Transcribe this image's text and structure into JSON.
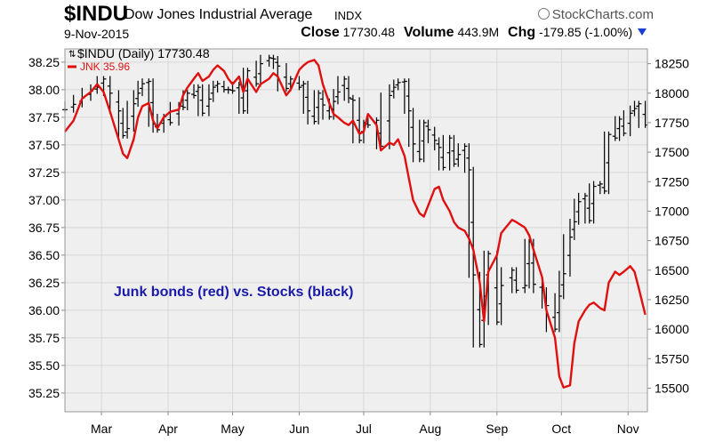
{
  "header": {
    "symbol": "$INDU",
    "company": "Dow Jones Industrial Average",
    "exchange": "INDX",
    "brand": "StockCharts.com",
    "date": "9-Nov-2015",
    "close_label": "Close",
    "close_value": "17730.48",
    "volume_label": "Volume",
    "volume_value": "443.9M",
    "chg_label": "Chg",
    "chg_value": "-179.85 (-1.00%)",
    "chg_icon": "triangle-down-icon",
    "brand_icon": "stockcharts-logo-icon"
  },
  "colors": {
    "dow": "#000000",
    "jnk": "#e01010",
    "annotation": "#1a1aa8",
    "plot_bg": "#efefef",
    "grid": "#d8d8d8"
  },
  "chart_data": {
    "type": "line",
    "annotation": "Junk bonds (red) vs. Stocks (black)",
    "legend": [
      {
        "label": "$INDU (Daily) 17730.48",
        "color": "#000000",
        "marker": "ohlc"
      },
      {
        "label": "JNK 35.96",
        "color": "#e01010",
        "marker": "line"
      }
    ],
    "legend_position": "top-left",
    "grid": true,
    "x_range": [
      "2015-02-12",
      "2015-11-10"
    ],
    "x_ticks": [
      {
        "date": "2015-03-01",
        "label": "Mar"
      },
      {
        "date": "2015-04-01",
        "label": "Apr"
      },
      {
        "date": "2015-05-01",
        "label": "May"
      },
      {
        "date": "2015-06-01",
        "label": "Jun"
      },
      {
        "date": "2015-07-01",
        "label": "Jul"
      },
      {
        "date": "2015-08-01",
        "label": "Aug"
      },
      {
        "date": "2015-09-01",
        "label": "Sep"
      },
      {
        "date": "2015-10-01",
        "label": "Oct"
      },
      {
        "date": "2015-11-01",
        "label": "Nov"
      }
    ],
    "y_left": {
      "series": "JNK",
      "range": [
        35.08,
        38.37
      ],
      "ticks": [
        "38.25",
        "38.00",
        "37.75",
        "37.50",
        "37.25",
        "37.00",
        "36.75",
        "36.50",
        "36.25",
        "36.00",
        "35.75",
        "35.50",
        "35.25"
      ]
    },
    "y_right": {
      "series": "$INDU",
      "range": [
        15300,
        18375
      ],
      "ticks": [
        "18250",
        "18000",
        "17750",
        "17500",
        "17250",
        "17000",
        "16750",
        "16500",
        "16250",
        "16000",
        "15750",
        "15500"
      ]
    },
    "series": [
      {
        "name": "JNK",
        "axis": "left",
        "points": [
          [
            "2015-02-12",
            37.62
          ],
          [
            "2015-02-16",
            37.72
          ],
          [
            "2015-02-20",
            37.92
          ],
          [
            "2015-02-24",
            37.98
          ],
          [
            "2015-02-27",
            38.05
          ],
          [
            "2015-03-02",
            37.98
          ],
          [
            "2015-03-05",
            37.8
          ],
          [
            "2015-03-09",
            37.55
          ],
          [
            "2015-03-11",
            37.42
          ],
          [
            "2015-03-13",
            37.38
          ],
          [
            "2015-03-16",
            37.55
          ],
          [
            "2015-03-18",
            37.75
          ],
          [
            "2015-03-20",
            37.85
          ],
          [
            "2015-03-23",
            37.88
          ],
          [
            "2015-03-25",
            37.72
          ],
          [
            "2015-03-27",
            37.65
          ],
          [
            "2015-03-30",
            37.75
          ],
          [
            "2015-04-02",
            37.8
          ],
          [
            "2015-04-06",
            37.82
          ],
          [
            "2015-04-08",
            37.95
          ],
          [
            "2015-04-10",
            38.02
          ],
          [
            "2015-04-13",
            38.1
          ],
          [
            "2015-04-15",
            38.15
          ],
          [
            "2015-04-17",
            38.08
          ],
          [
            "2015-04-20",
            38.12
          ],
          [
            "2015-04-22",
            38.18
          ],
          [
            "2015-04-24",
            38.22
          ],
          [
            "2015-04-27",
            38.17
          ],
          [
            "2015-04-29",
            38.1
          ],
          [
            "2015-05-01",
            38.05
          ],
          [
            "2015-05-04",
            38.12
          ],
          [
            "2015-05-06",
            37.98
          ],
          [
            "2015-05-08",
            38.1
          ],
          [
            "2015-05-12",
            37.98
          ],
          [
            "2015-05-14",
            38.05
          ],
          [
            "2015-05-18",
            38.1
          ],
          [
            "2015-05-20",
            38.15
          ],
          [
            "2015-05-22",
            38.12
          ],
          [
            "2015-05-26",
            37.95
          ],
          [
            "2015-05-28",
            38.0
          ],
          [
            "2015-06-01",
            38.18
          ],
          [
            "2015-06-03",
            38.22
          ],
          [
            "2015-06-05",
            38.25
          ],
          [
            "2015-06-08",
            38.27
          ],
          [
            "2015-06-10",
            38.22
          ],
          [
            "2015-06-12",
            38.05
          ],
          [
            "2015-06-15",
            37.88
          ],
          [
            "2015-06-17",
            37.78
          ],
          [
            "2015-06-19",
            37.75
          ],
          [
            "2015-06-22",
            37.7
          ],
          [
            "2015-06-24",
            37.68
          ],
          [
            "2015-06-26",
            37.72
          ],
          [
            "2015-06-29",
            37.6
          ],
          [
            "2015-07-01",
            37.62
          ],
          [
            "2015-07-03",
            37.78
          ],
          [
            "2015-07-07",
            37.68
          ],
          [
            "2015-07-09",
            37.45
          ],
          [
            "2015-07-13",
            37.52
          ],
          [
            "2015-07-15",
            37.5
          ],
          [
            "2015-07-17",
            37.55
          ],
          [
            "2015-07-20",
            37.4
          ],
          [
            "2015-07-22",
            37.2
          ],
          [
            "2015-07-24",
            37.0
          ],
          [
            "2015-07-27",
            36.88
          ],
          [
            "2015-07-29",
            36.85
          ],
          [
            "2015-07-31",
            36.95
          ],
          [
            "2015-08-03",
            37.1
          ],
          [
            "2015-08-05",
            37.12
          ],
          [
            "2015-08-07",
            37.0
          ],
          [
            "2015-08-10",
            36.9
          ],
          [
            "2015-08-12",
            36.8
          ],
          [
            "2015-08-14",
            36.75
          ],
          [
            "2015-08-17",
            36.72
          ],
          [
            "2015-08-19",
            36.65
          ],
          [
            "2015-08-21",
            36.55
          ],
          [
            "2015-08-24",
            36.25
          ],
          [
            "2015-08-26",
            35.9
          ],
          [
            "2015-08-28",
            36.35
          ],
          [
            "2015-09-01",
            36.5
          ],
          [
            "2015-09-03",
            36.7
          ],
          [
            "2015-09-08",
            36.82
          ],
          [
            "2015-09-10",
            36.8
          ],
          [
            "2015-09-14",
            36.75
          ],
          [
            "2015-09-16",
            36.68
          ],
          [
            "2015-09-18",
            36.55
          ],
          [
            "2015-09-22",
            36.3
          ],
          [
            "2015-09-24",
            36.0
          ],
          [
            "2015-09-28",
            35.75
          ],
          [
            "2015-09-30",
            35.4
          ],
          [
            "2015-10-02",
            35.3
          ],
          [
            "2015-10-05",
            35.32
          ],
          [
            "2015-10-07",
            35.7
          ],
          [
            "2015-10-09",
            35.9
          ],
          [
            "2015-10-12",
            36.0
          ],
          [
            "2015-10-14",
            36.05
          ],
          [
            "2015-10-16",
            36.07
          ],
          [
            "2015-10-19",
            36.02
          ],
          [
            "2015-10-21",
            36.0
          ],
          [
            "2015-10-23",
            36.25
          ],
          [
            "2015-10-26",
            36.35
          ],
          [
            "2015-10-28",
            36.32
          ],
          [
            "2015-10-30",
            36.35
          ],
          [
            "2015-11-02",
            36.4
          ],
          [
            "2015-11-04",
            36.35
          ],
          [
            "2015-11-06",
            36.2
          ],
          [
            "2015-11-09",
            35.96
          ]
        ]
      },
      {
        "name": "$INDU",
        "axis": "right",
        "style": "ohlc",
        "points": [
          [
            "2015-02-12",
            17860
          ],
          [
            "2015-02-16",
            17905
          ],
          [
            "2015-02-20",
            17960
          ],
          [
            "2015-02-24",
            18020
          ],
          [
            "2015-02-27",
            18050
          ],
          [
            "2015-03-02",
            18120
          ],
          [
            "2015-03-05",
            18000
          ],
          [
            "2015-03-09",
            17850
          ],
          [
            "2015-03-11",
            17640
          ],
          [
            "2015-03-13",
            17700
          ],
          [
            "2015-03-16",
            17910
          ],
          [
            "2015-03-18",
            18000
          ],
          [
            "2015-03-20",
            18080
          ],
          [
            "2015-03-23",
            18100
          ],
          [
            "2015-03-25",
            17740
          ],
          [
            "2015-03-27",
            17690
          ],
          [
            "2015-03-30",
            17800
          ],
          [
            "2015-04-02",
            17750
          ],
          [
            "2015-04-06",
            17900
          ],
          [
            "2015-04-08",
            17880
          ],
          [
            "2015-04-10",
            18000
          ],
          [
            "2015-04-13",
            17980
          ],
          [
            "2015-04-15",
            18050
          ],
          [
            "2015-04-17",
            17830
          ],
          [
            "2015-04-20",
            17950
          ],
          [
            "2015-04-22",
            18050
          ],
          [
            "2015-04-24",
            18080
          ],
          [
            "2015-04-27",
            18030
          ],
          [
            "2015-04-29",
            18030
          ],
          [
            "2015-05-01",
            18020
          ],
          [
            "2015-05-04",
            18070
          ],
          [
            "2015-05-06",
            17850
          ],
          [
            "2015-05-08",
            18190
          ],
          [
            "2015-05-12",
            18080
          ],
          [
            "2015-05-14",
            18250
          ],
          [
            "2015-05-18",
            18300
          ],
          [
            "2015-05-20",
            18290
          ],
          [
            "2015-05-22",
            18230
          ],
          [
            "2015-05-26",
            18040
          ],
          [
            "2015-05-28",
            18120
          ],
          [
            "2015-06-01",
            18050
          ],
          [
            "2015-06-03",
            18080
          ],
          [
            "2015-06-05",
            17850
          ],
          [
            "2015-06-08",
            17760
          ],
          [
            "2015-06-10",
            18000
          ],
          [
            "2015-06-12",
            17900
          ],
          [
            "2015-06-15",
            17800
          ],
          [
            "2015-06-17",
            17930
          ],
          [
            "2015-06-19",
            18010
          ],
          [
            "2015-06-22",
            18120
          ],
          [
            "2015-06-24",
            17960
          ],
          [
            "2015-06-26",
            17940
          ],
          [
            "2015-06-29",
            17600
          ],
          [
            "2015-07-01",
            17750
          ],
          [
            "2015-07-03",
            17730
          ],
          [
            "2015-07-07",
            17770
          ],
          [
            "2015-07-09",
            17550
          ],
          [
            "2015-07-13",
            17980
          ],
          [
            "2015-07-15",
            18050
          ],
          [
            "2015-07-17",
            18090
          ],
          [
            "2015-07-20",
            18100
          ],
          [
            "2015-07-22",
            17850
          ],
          [
            "2015-07-24",
            17570
          ],
          [
            "2015-07-27",
            17440
          ],
          [
            "2015-07-29",
            17750
          ],
          [
            "2015-07-31",
            17690
          ],
          [
            "2015-08-03",
            17600
          ],
          [
            "2015-08-05",
            17540
          ],
          [
            "2015-08-07",
            17370
          ],
          [
            "2015-08-10",
            17620
          ],
          [
            "2015-08-12",
            17400
          ],
          [
            "2015-08-14",
            17480
          ],
          [
            "2015-08-17",
            17550
          ],
          [
            "2015-08-19",
            17350
          ],
          [
            "2015-08-21",
            16460
          ],
          [
            "2015-08-24",
            15870
          ],
          [
            "2015-08-26",
            16280
          ],
          [
            "2015-08-28",
            16640
          ],
          [
            "2015-09-01",
            16060
          ],
          [
            "2015-09-03",
            16370
          ],
          [
            "2015-09-08",
            16500
          ],
          [
            "2015-09-10",
            16330
          ],
          [
            "2015-09-14",
            16370
          ],
          [
            "2015-09-16",
            16740
          ],
          [
            "2015-09-18",
            16380
          ],
          [
            "2015-09-22",
            16330
          ],
          [
            "2015-09-24",
            16200
          ],
          [
            "2015-09-28",
            16000
          ],
          [
            "2015-09-30",
            16280
          ],
          [
            "2015-10-02",
            16470
          ],
          [
            "2015-10-05",
            16780
          ],
          [
            "2015-10-07",
            16910
          ],
          [
            "2015-10-09",
            17080
          ],
          [
            "2015-10-12",
            17130
          ],
          [
            "2015-10-14",
            16920
          ],
          [
            "2015-10-16",
            17210
          ],
          [
            "2015-10-19",
            17230
          ],
          [
            "2015-10-21",
            17170
          ],
          [
            "2015-10-23",
            17650
          ],
          [
            "2015-10-26",
            17620
          ],
          [
            "2015-10-28",
            17780
          ],
          [
            "2015-10-30",
            17660
          ],
          [
            "2015-11-02",
            17830
          ],
          [
            "2015-11-04",
            17870
          ],
          [
            "2015-11-06",
            17910
          ],
          [
            "2015-11-09",
            17730
          ]
        ]
      }
    ]
  }
}
